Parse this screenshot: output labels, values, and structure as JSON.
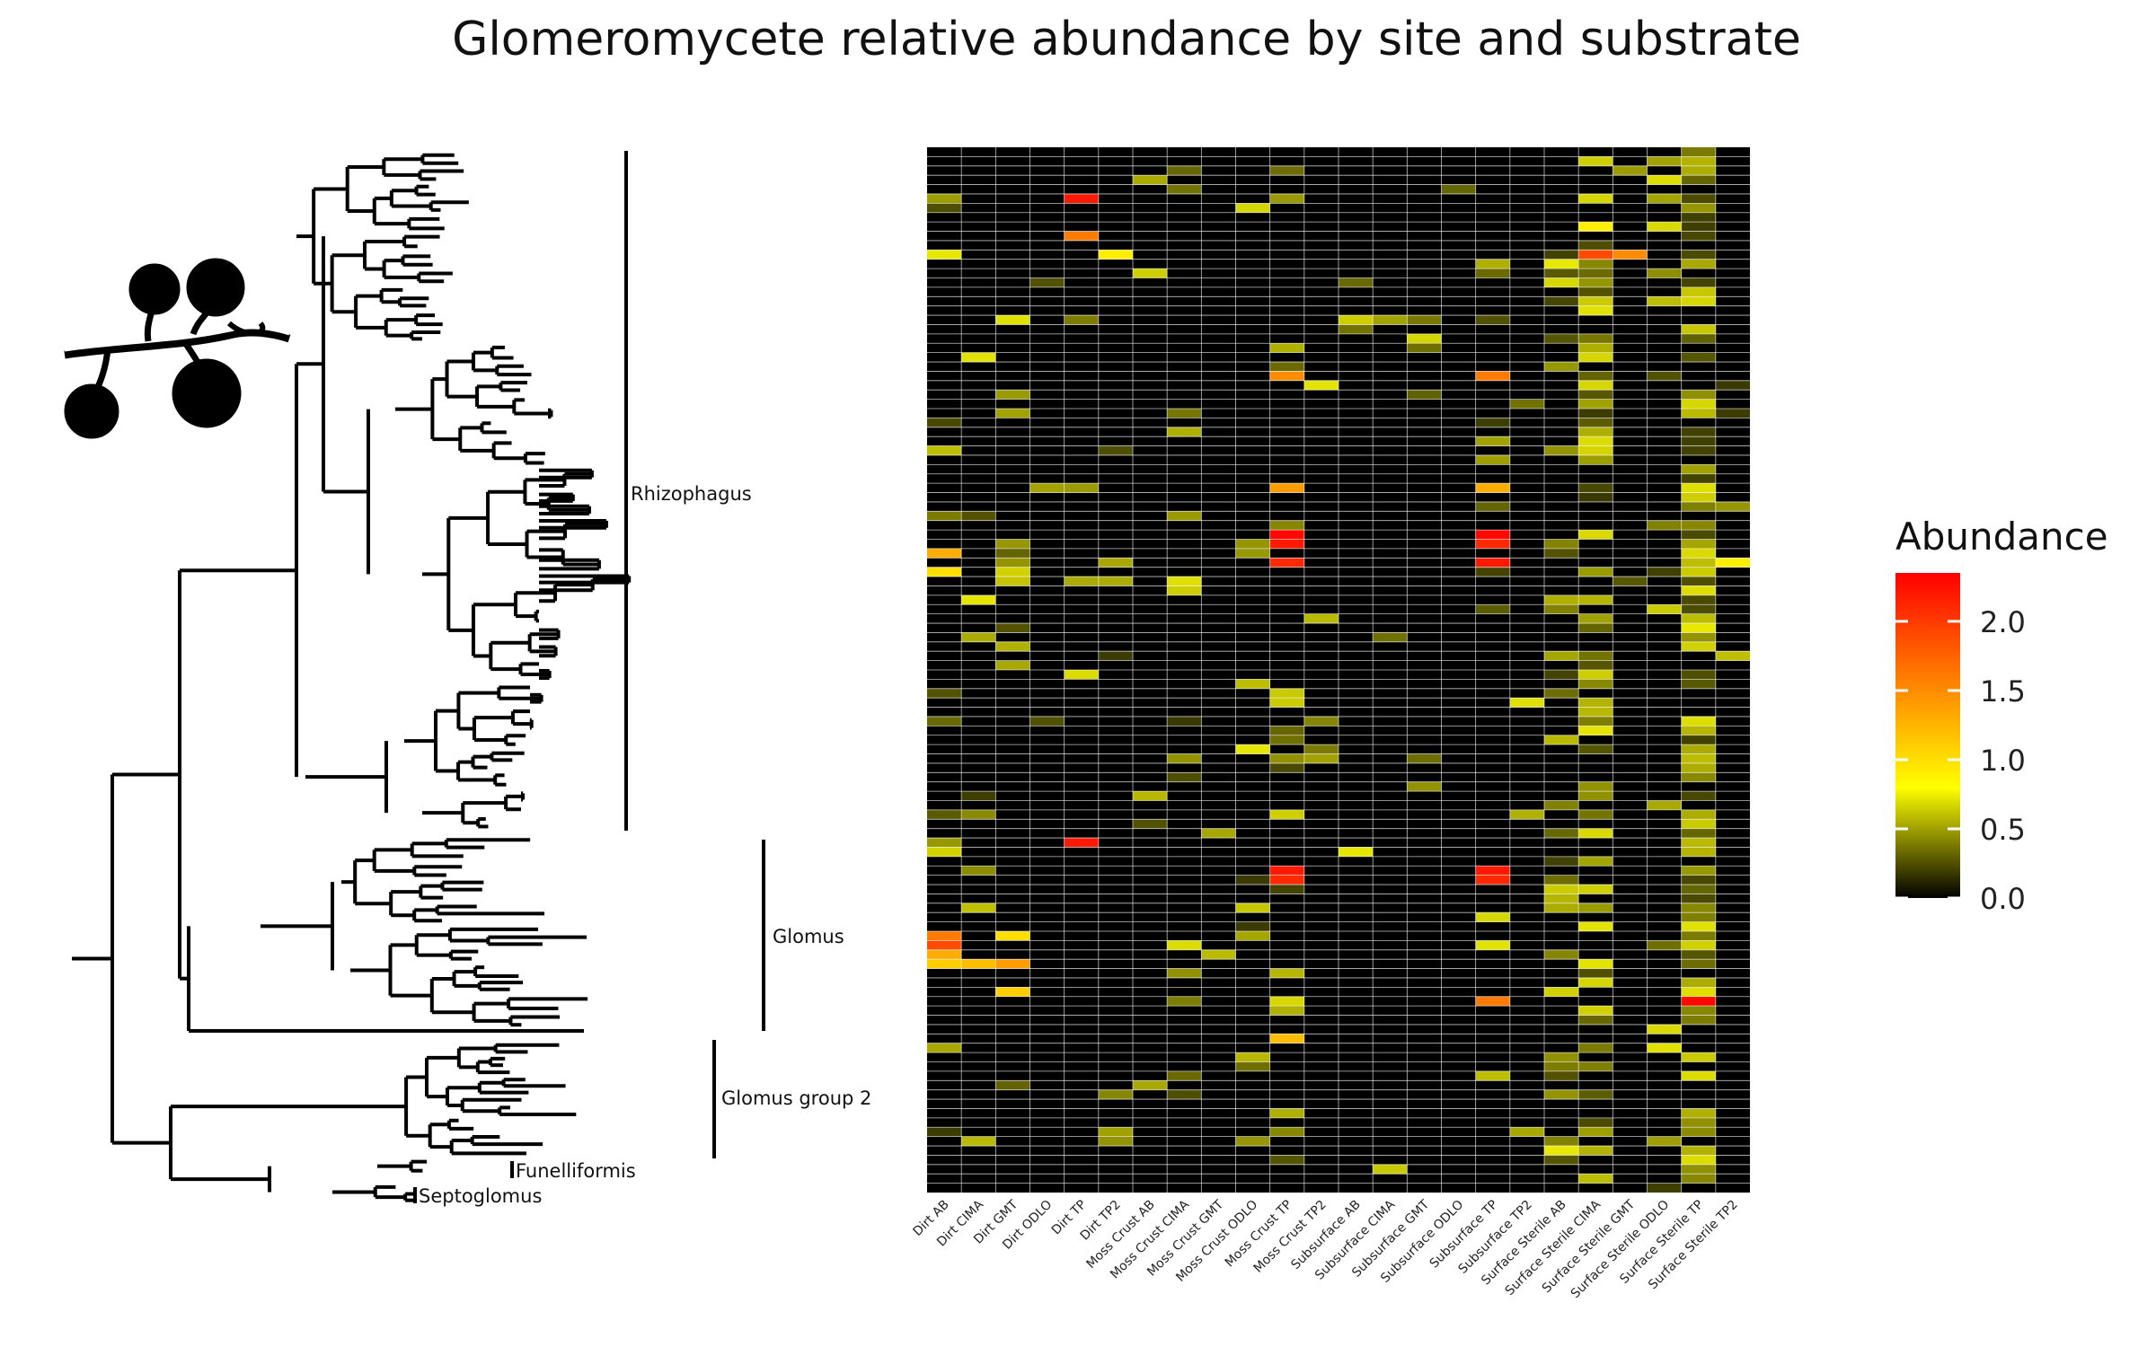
{
  "title": "Glomeromycete relative abundance by site and substrate",
  "colors": {
    "low": "#000000",
    "mid": "#ffff00",
    "high": "#ff0000",
    "tree": "#000000",
    "grid": "#ffffff"
  },
  "icon": "fungal-spore-hyphae-icon",
  "tree": {
    "clades": [
      {
        "name": "Rhizophagus",
        "label": "Rhizophagus"
      },
      {
        "name": "Glomus",
        "label": "Glomus"
      },
      {
        "name": "Glomus-group-2",
        "label": "Glomus group 2"
      },
      {
        "name": "Funelliformis",
        "label": "Funelliformis"
      },
      {
        "name": "Septoglomus",
        "label": "Septoglomus"
      }
    ]
  },
  "chart_data": {
    "type": "heatmap",
    "title": "Glomeromycete relative abundance by site and substrate",
    "columns": [
      "Dirt AB",
      "Dirt CIMA",
      "Dirt GMT",
      "Dirt ODLO",
      "Dirt TP",
      "Dirt TP2",
      "Moss Crust AB",
      "Moss Crust CIMA",
      "Moss Crust GMT",
      "Moss Crust ODLO",
      "Moss Crust TP",
      "Moss Crust TP2",
      "Subsurface AB",
      "Subsurface CIMA",
      "Subsurface GMT",
      "Subsurface ODLO",
      "Subsurface TP",
      "Subsurface TP2",
      "Surface Sterile AB",
      "Surface Sterile CIMA",
      "Surface Sterile GMT",
      "Surface Sterile ODLO",
      "Surface Sterile TP",
      "Surface Sterile TP2"
    ],
    "row_count": 112,
    "legend": {
      "title": "Abundance",
      "ticks": [
        0.0,
        0.5,
        1.0,
        1.5,
        2.0
      ],
      "tick_labels": [
        "0.0",
        "0.5",
        "1.0",
        "1.5",
        "2.0"
      ],
      "range": [
        0,
        2.35
      ],
      "placement": "right"
    },
    "high_cells": [
      {
        "row": 5,
        "col": "Dirt TP",
        "value": 2.2
      },
      {
        "row": 8,
        "col": "Surface Sterile CIMA",
        "value": 0.9
      },
      {
        "row": 9,
        "col": "Dirt TP",
        "value": 1.6
      },
      {
        "row": 11,
        "col": "Dirt TP2",
        "value": 0.9
      },
      {
        "row": 11,
        "col": "Surface Sterile CIMA",
        "value": 1.9
      },
      {
        "row": 11,
        "col": "Surface Sterile GMT",
        "value": 1.5
      },
      {
        "row": 24,
        "col": "Moss Crust TP",
        "value": 1.5
      },
      {
        "row": 24,
        "col": "Subsurface TP",
        "value": 1.6
      },
      {
        "row": 36,
        "col": "Moss Crust TP",
        "value": 1.4
      },
      {
        "row": 36,
        "col": "Subsurface TP",
        "value": 1.3
      },
      {
        "row": 41,
        "col": "Moss Crust TP",
        "value": 2.3
      },
      {
        "row": 41,
        "col": "Subsurface TP",
        "value": 2.3
      },
      {
        "row": 42,
        "col": "Moss Crust TP",
        "value": 2.2
      },
      {
        "row": 42,
        "col": "Subsurface TP",
        "value": 2.1
      },
      {
        "row": 43,
        "col": "Dirt AB",
        "value": 1.3
      },
      {
        "row": 44,
        "col": "Moss Crust TP",
        "value": 2.1
      },
      {
        "row": 44,
        "col": "Subsurface TP",
        "value": 2.2
      },
      {
        "row": 44,
        "col": "Surface Sterile TP2",
        "value": 0.9
      },
      {
        "row": 45,
        "col": "Dirt AB",
        "value": 1.0
      },
      {
        "row": 74,
        "col": "Dirt TP",
        "value": 2.2
      },
      {
        "row": 77,
        "col": "Moss Crust TP",
        "value": 2.2
      },
      {
        "row": 77,
        "col": "Subsurface TP",
        "value": 2.2
      },
      {
        "row": 78,
        "col": "Moss Crust TP",
        "value": 2.1
      },
      {
        "row": 78,
        "col": "Subsurface TP",
        "value": 2.1
      },
      {
        "row": 84,
        "col": "Dirt AB",
        "value": 1.6
      },
      {
        "row": 84,
        "col": "Dirt GMT",
        "value": 1.0
      },
      {
        "row": 85,
        "col": "Dirt AB",
        "value": 1.9
      },
      {
        "row": 86,
        "col": "Dirt AB",
        "value": 1.3
      },
      {
        "row": 87,
        "col": "Dirt AB",
        "value": 1.1
      },
      {
        "row": 87,
        "col": "Dirt CIMA",
        "value": 1.2
      },
      {
        "row": 87,
        "col": "Dirt GMT",
        "value": 1.4
      },
      {
        "row": 90,
        "col": "Dirt GMT",
        "value": 1.1
      },
      {
        "row": 91,
        "col": "Subsurface TP",
        "value": 1.6
      },
      {
        "row": 91,
        "col": "Surface Sterile TP",
        "value": 2.3
      },
      {
        "row": 95,
        "col": "Moss Crust TP",
        "value": 1.2
      }
    ]
  }
}
